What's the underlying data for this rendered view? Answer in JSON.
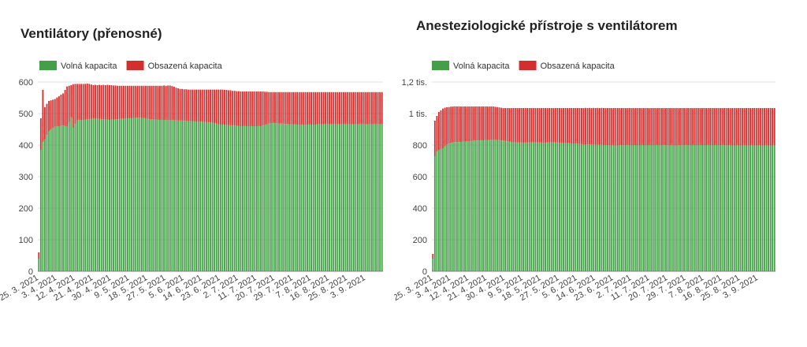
{
  "chart_data": [
    {
      "type": "bar",
      "stacked": true,
      "title": "Ventilátory (přenosné)",
      "xlabel": "",
      "ylabel": "",
      "ylim": [
        0,
        600
      ],
      "yticks": [
        {
          "value": 0,
          "label": "0"
        },
        {
          "value": 100,
          "label": "100"
        },
        {
          "value": 200,
          "label": "200"
        },
        {
          "value": 300,
          "label": "300"
        },
        {
          "value": 400,
          "label": "400"
        },
        {
          "value": 500,
          "label": "500"
        },
        {
          "value": 600,
          "label": "600"
        }
      ],
      "grid": true,
      "legend": "top-left",
      "start_date": "2021-03-25",
      "days": 171,
      "date_labels": [
        "25. 3. 2021",
        "3. 4. 2021",
        "12. 4. 2021",
        "21. 4. 2021",
        "30. 4. 2021",
        "9. 5. 2021",
        "18. 5. 2021",
        "27. 5. 2021",
        "5. 6. 2021",
        "14. 6. 2021",
        "23. 6. 2021",
        "2. 7. 2021",
        "11. 7. 2021",
        "20. 7. 2021",
        "29. 7. 2021",
        "7. 8. 2021",
        "16. 8. 2021",
        "25. 8. 2021",
        "3. 9. 2021"
      ],
      "series": [
        {
          "name": "Volná kapacita",
          "color": "#43a047",
          "points": [
            [
              0,
              40
            ],
            [
              1,
              385
            ],
            [
              2,
              410
            ],
            [
              3,
              418
            ],
            [
              5,
              445
            ],
            [
              8,
              458
            ],
            [
              12,
              462
            ],
            [
              14,
              458
            ],
            [
              16,
              488
            ],
            [
              17,
              455
            ],
            [
              19,
              478
            ],
            [
              22,
              480
            ],
            [
              27,
              484
            ],
            [
              35,
              480
            ],
            [
              40,
              483
            ],
            [
              45,
              485
            ],
            [
              50,
              487
            ],
            [
              55,
              482
            ],
            [
              60,
              480
            ],
            [
              70,
              478
            ],
            [
              75,
              476
            ],
            [
              85,
              472
            ],
            [
              90,
              465
            ],
            [
              100,
              460
            ],
            [
              110,
              460
            ],
            [
              115,
              470
            ],
            [
              120,
              468
            ],
            [
              125,
              466
            ],
            [
              130,
              464
            ],
            [
              140,
              466
            ],
            [
              170,
              466
            ]
          ]
        },
        {
          "name": "Obsazená kapacita",
          "color": "#d32f2f",
          "points": [
            [
              0,
              20
            ],
            [
              1,
              100
            ],
            [
              2,
              165
            ],
            [
              3,
              102
            ],
            [
              5,
              95
            ],
            [
              8,
              88
            ],
            [
              12,
              102
            ],
            [
              14,
              128
            ],
            [
              16,
              102
            ],
            [
              17,
              138
            ],
            [
              19,
              116
            ],
            [
              25,
              112
            ],
            [
              27,
              106
            ],
            [
              35,
              110
            ],
            [
              40,
              105
            ],
            [
              45,
              103
            ],
            [
              50,
              101
            ],
            [
              55,
              106
            ],
            [
              60,
              108
            ],
            [
              65,
              110
            ],
            [
              70,
              100
            ],
            [
              75,
              100
            ],
            [
              85,
              104
            ],
            [
              90,
              111
            ],
            [
              100,
              110
            ],
            [
              110,
              110
            ],
            [
              115,
              98
            ],
            [
              120,
              100
            ],
            [
              125,
              102
            ],
            [
              130,
              104
            ],
            [
              140,
              102
            ],
            [
              170,
              102
            ]
          ]
        }
      ]
    },
    {
      "type": "bar",
      "stacked": true,
      "title": "Anesteziologické přístroje s ventilátorem",
      "xlabel": "",
      "ylabel": "",
      "ylim": [
        0,
        1200
      ],
      "yticks": [
        {
          "value": 0,
          "label": "0"
        },
        {
          "value": 200,
          "label": "200"
        },
        {
          "value": 400,
          "label": "400"
        },
        {
          "value": 600,
          "label": "600"
        },
        {
          "value": 800,
          "label": "800"
        },
        {
          "value": 1000,
          "label": "1 tis."
        },
        {
          "value": 1200,
          "label": "1,2 tis."
        }
      ],
      "grid": true,
      "legend": "top-left",
      "start_date": "2021-03-25",
      "days": 171,
      "date_labels": [
        "25. 3. 2021",
        "3. 4. 2021",
        "12. 4. 2021",
        "21. 4. 2021",
        "30. 4. 2021",
        "9. 5. 2021",
        "18. 5. 2021",
        "27. 5. 2021",
        "5. 6. 2021",
        "14. 6. 2021",
        "23. 6. 2021",
        "2. 7. 2021",
        "11. 7. 2021",
        "20. 7. 2021",
        "29. 7. 2021",
        "7. 8. 2021",
        "16. 8. 2021",
        "25. 8. 2021",
        "3. 9. 2021"
      ],
      "series": [
        {
          "name": "Volná kapacita",
          "color": "#43a047",
          "points": [
            [
              0,
              80
            ],
            [
              1,
              730
            ],
            [
              2,
              760
            ],
            [
              3,
              770
            ],
            [
              5,
              780
            ],
            [
              7,
              805
            ],
            [
              10,
              818
            ],
            [
              14,
              820
            ],
            [
              20,
              828
            ],
            [
              25,
              830
            ],
            [
              30,
              835
            ],
            [
              35,
              828
            ],
            [
              40,
              818
            ],
            [
              45,
              815
            ],
            [
              50,
              818
            ],
            [
              55,
              815
            ],
            [
              60,
              818
            ],
            [
              65,
              812
            ],
            [
              70,
              810
            ],
            [
              75,
              805
            ],
            [
              85,
              800
            ],
            [
              90,
              798
            ],
            [
              100,
              800
            ],
            [
              110,
              800
            ],
            [
              120,
              798
            ],
            [
              130,
              800
            ],
            [
              140,
              800
            ],
            [
              150,
              798
            ],
            [
              170,
              798
            ]
          ]
        },
        {
          "name": "Obsazená kapacita",
          "color": "#d32f2f",
          "points": [
            [
              0,
              30
            ],
            [
              1,
              225
            ],
            [
              2,
              225
            ],
            [
              3,
              240
            ],
            [
              5,
              252
            ],
            [
              7,
              235
            ],
            [
              10,
              227
            ],
            [
              14,
              225
            ],
            [
              20,
              217
            ],
            [
              25,
              215
            ],
            [
              30,
              210
            ],
            [
              35,
              207
            ],
            [
              40,
              217
            ],
            [
              45,
              220
            ],
            [
              50,
              217
            ],
            [
              55,
              220
            ],
            [
              60,
              217
            ],
            [
              65,
              223
            ],
            [
              70,
              225
            ],
            [
              75,
              230
            ],
            [
              85,
              235
            ],
            [
              90,
              237
            ],
            [
              100,
              235
            ],
            [
              110,
              235
            ],
            [
              120,
              237
            ],
            [
              130,
              235
            ],
            [
              140,
              235
            ],
            [
              150,
              237
            ],
            [
              170,
              237
            ]
          ]
        }
      ]
    }
  ]
}
